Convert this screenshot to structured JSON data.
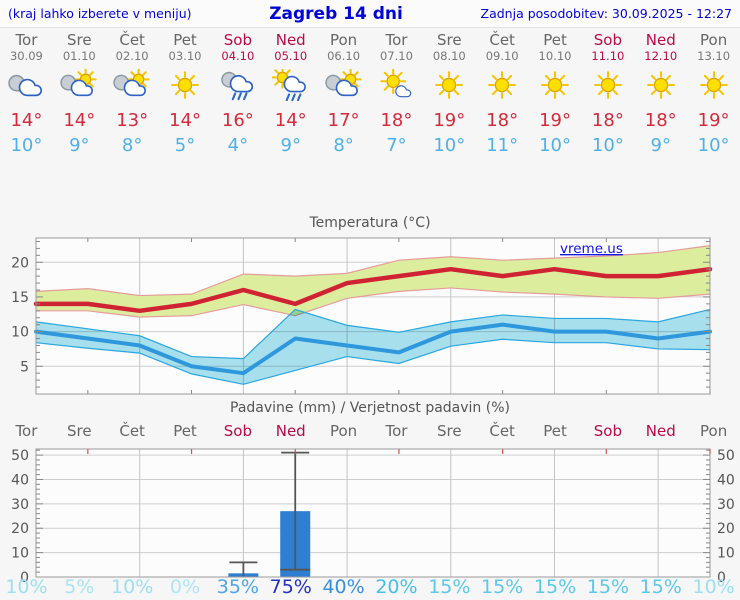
{
  "header": {
    "left": "(kraj lahko izberete v meniju)",
    "title": "Zagreb 14 dni",
    "right": "Zadnja posodobitev: 30.09.2025 - 12:27"
  },
  "colors": {
    "header_text": "#0004d6",
    "weekday": "#666666",
    "weekend": "#bb0a44",
    "tmax_text": "#d42a3a",
    "tmin_text": "#4fb0e8",
    "tmax_line": "#cf2333",
    "tmin_line": "#2f98dd",
    "tmax_band": "#dcee9e",
    "tmax_band_edge": "#e59b9b",
    "tmin_band": "#a9e2f0",
    "tmin_band_edge": "#2aa6de",
    "bar": "#2e7fd2",
    "whisker": "#555555",
    "grid": "#cfcfcf",
    "axis": "#9a9a9a",
    "watermark": "#1414e6"
  },
  "days": [
    {
      "name": "Tor",
      "date": "30.09",
      "weekend": false,
      "icon": "cloudy",
      "tmax": "14°",
      "tmin": "10°",
      "pop": "10%",
      "pop_color": "#9ddff1"
    },
    {
      "name": "Sre",
      "date": "01.10",
      "weekend": false,
      "icon": "partly-cloudy",
      "tmax": "14°",
      "tmin": "9°",
      "pop": "5%",
      "pop_color": "#a7e3f3"
    },
    {
      "name": "Čet",
      "date": "02.10",
      "weekend": false,
      "icon": "partly-cloudy",
      "tmax": "13°",
      "tmin": "8°",
      "pop": "10%",
      "pop_color": "#9ddff1"
    },
    {
      "name": "Pet",
      "date": "03.10",
      "weekend": false,
      "icon": "sunny",
      "tmax": "14°",
      "tmin": "5°",
      "pop": "0%",
      "pop_color": "#ace6f4"
    },
    {
      "name": "Sob",
      "date": "04.10",
      "weekend": true,
      "icon": "rain",
      "tmax": "16°",
      "tmin": "4°",
      "pop": "35%",
      "pop_color": "#4fa5e5"
    },
    {
      "name": "Ned",
      "date": "05.10",
      "weekend": true,
      "icon": "sun-shower",
      "tmax": "14°",
      "tmin": "9°",
      "pop": "75%",
      "pop_color": "#2431c0"
    },
    {
      "name": "Pon",
      "date": "06.10",
      "weekend": false,
      "icon": "partly-cloudy",
      "tmax": "17°",
      "tmin": "8°",
      "pop": "40%",
      "pop_color": "#3a8ede"
    },
    {
      "name": "Tor",
      "date": "07.10",
      "weekend": false,
      "icon": "mostly-sunny",
      "tmax": "18°",
      "tmin": "7°",
      "pop": "20%",
      "pop_color": "#45c0e7"
    },
    {
      "name": "Sre",
      "date": "08.10",
      "weekend": false,
      "icon": "sunny",
      "tmax": "19°",
      "tmin": "10°",
      "pop": "15%",
      "pop_color": "#5ac8ea"
    },
    {
      "name": "Čet",
      "date": "09.10",
      "weekend": false,
      "icon": "sunny",
      "tmax": "18°",
      "tmin": "11°",
      "pop": "15%",
      "pop_color": "#5ac8ea"
    },
    {
      "name": "Pet",
      "date": "10.10",
      "weekend": false,
      "icon": "sunny",
      "tmax": "19°",
      "tmin": "10°",
      "pop": "15%",
      "pop_color": "#5ac8ea"
    },
    {
      "name": "Sob",
      "date": "11.10",
      "weekend": true,
      "icon": "sunny",
      "tmax": "18°",
      "tmin": "10°",
      "pop": "15%",
      "pop_color": "#5ac8ea"
    },
    {
      "name": "Ned",
      "date": "12.10",
      "weekend": true,
      "icon": "sunny",
      "tmax": "18°",
      "tmin": "9°",
      "pop": "15%",
      "pop_color": "#5ac8ea"
    },
    {
      "name": "Pon",
      "date": "13.10",
      "weekend": false,
      "icon": "sunny",
      "tmax": "19°",
      "tmin": "10°",
      "pop": "10%",
      "pop_color": "#9ddff1"
    }
  ],
  "chart_data": [
    {
      "type": "line",
      "title": "Temperatura (°C)",
      "watermark": "vreme.us",
      "categories": [
        "30.09",
        "01.10",
        "02.10",
        "03.10",
        "04.10",
        "05.10",
        "06.10",
        "07.10",
        "08.10",
        "09.10",
        "10.10",
        "11.10",
        "12.10",
        "13.10"
      ],
      "ylim": [
        1,
        23.5
      ],
      "yticks": [
        5,
        10,
        15,
        20
      ],
      "grid": true,
      "series": [
        {
          "name": "max-temperatura",
          "color": "#cf2333",
          "width": 4.5,
          "values": [
            14,
            14,
            13,
            14,
            16,
            14,
            17,
            18,
            19,
            18,
            19,
            18,
            18,
            19
          ]
        },
        {
          "name": "min-temperatura",
          "color": "#2f98dd",
          "width": 4,
          "values": [
            10,
            9,
            8,
            5,
            4,
            9,
            8,
            7,
            10,
            11,
            10,
            10,
            9,
            10
          ]
        }
      ],
      "bands": [
        {
          "name": "max-razpon",
          "fill": "#dcee9e",
          "edge": "#e59b9b",
          "upper": [
            15.8,
            16.2,
            15.2,
            15.4,
            18.3,
            18.0,
            18.4,
            20.3,
            20.8,
            20.3,
            20.6,
            20.9,
            21.4,
            22.4
          ],
          "lower": [
            13.0,
            13.0,
            12.1,
            12.3,
            13.9,
            12.3,
            14.8,
            15.8,
            16.3,
            15.7,
            15.4,
            15.0,
            14.8,
            15.4
          ],
          "blend": false
        },
        {
          "name": "min-razpon",
          "fill": "#a9e2f0",
          "edge": "#2aa6de",
          "upper": [
            11.4,
            10.4,
            9.4,
            6.4,
            6.1,
            13.2,
            10.9,
            9.9,
            11.4,
            12.4,
            11.9,
            11.9,
            11.4,
            13.2
          ],
          "lower": [
            8.4,
            7.6,
            6.9,
            3.9,
            2.4,
            4.4,
            6.4,
            5.4,
            7.9,
            8.9,
            8.4,
            8.4,
            7.5,
            7.4
          ],
          "blend": true
        }
      ]
    },
    {
      "type": "bar",
      "title": "Padavine (mm) / Verjetnost padavin (%)",
      "categories": [
        "Tor",
        "Sre",
        "Čet",
        "Pet",
        "Sob",
        "Ned",
        "Pon",
        "Tor",
        "Sre",
        "Čet",
        "Pet",
        "Sob",
        "Ned",
        "Pon"
      ],
      "ylim": [
        0,
        52.5
      ],
      "yticks": [
        0,
        10,
        20,
        30,
        40,
        50
      ],
      "grid": true,
      "bar_color": "#2e7fd2",
      "values": [
        0,
        0,
        0,
        0,
        1.5,
        27,
        0,
        0,
        0,
        0,
        0,
        0,
        0,
        0
      ],
      "whiskers": [
        {
          "day": 4,
          "min": 0,
          "max": 6
        },
        {
          "day": 5,
          "min": 3,
          "max": 51
        }
      ],
      "probability": [
        "10%",
        "5%",
        "10%",
        "0%",
        "35%",
        "75%",
        "40%",
        "20%",
        "15%",
        "15%",
        "15%",
        "15%",
        "15%",
        "10%"
      ]
    }
  ]
}
